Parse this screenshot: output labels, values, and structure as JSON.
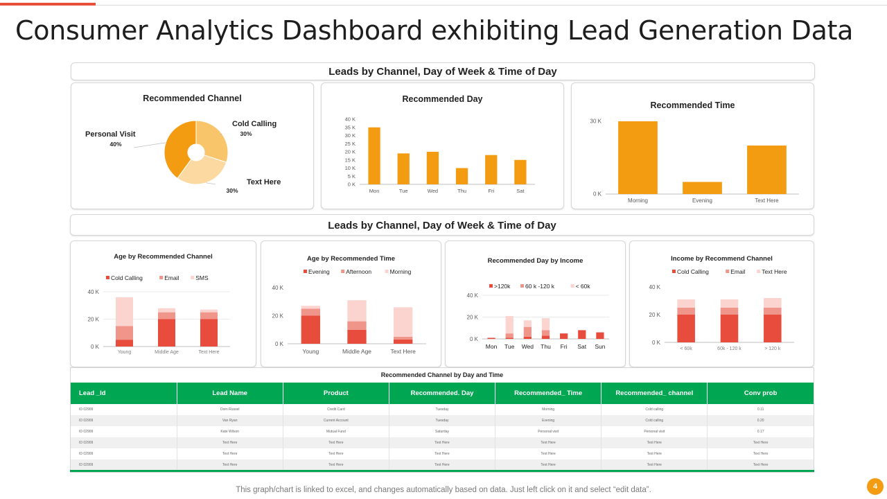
{
  "title": "Consumer Analytics Dashboard exhibiting Lead Generation Data",
  "section1_header": "Leads by Channel, Day of Week & Time of Day",
  "section2_header": "Leads by Channel, Day of Week & Time of Day",
  "colors": {
    "accent": "#e8503a",
    "orange": "#f39c12",
    "green": "#00a651",
    "red": "#e84c3d",
    "salmon": "#f0958a",
    "pink": "#fbd3cf"
  },
  "chart_data": [
    {
      "id": "recommended_channel",
      "type": "pie",
      "title": "Recommended  Channel",
      "slices": [
        {
          "label": "Cold Calling",
          "pct_label": "30%",
          "value": 30,
          "color": "#f9c56b"
        },
        {
          "label": "Text Here",
          "pct_label": "30%",
          "value": 30,
          "color": "#fbd9a0"
        },
        {
          "label": "Personal Visit",
          "pct_label": "40%",
          "value": 40,
          "color": "#f39c12"
        }
      ]
    },
    {
      "id": "recommended_day",
      "type": "bar",
      "title": "Recommended  Day",
      "categories": [
        "Mon",
        "Tue",
        "Wed",
        "Thu",
        "Fri",
        "Sat"
      ],
      "values": [
        35000,
        19000,
        20000,
        10000,
        18000,
        15000
      ],
      "yticks": [
        0,
        5000,
        10000,
        15000,
        20000,
        25000,
        30000,
        35000,
        40000
      ],
      "ytick_labels": [
        "0 K",
        "5 K",
        "10 K",
        "15 K",
        "20 K",
        "25 K",
        "30 K",
        "35 K",
        "40 K"
      ],
      "ylim": [
        0,
        40000
      ],
      "color": "#f39c12"
    },
    {
      "id": "recommended_time",
      "type": "bar",
      "title": "Recommended  Time",
      "categories": [
        "Morning",
        "Evening",
        "Text Here"
      ],
      "values": [
        30000,
        5000,
        20000
      ],
      "yticks": [
        0,
        30000
      ],
      "ytick_labels": [
        "0 K",
        "30 K"
      ],
      "ylim": [
        0,
        30000
      ],
      "color": "#f39c12"
    },
    {
      "id": "age_by_channel",
      "type": "bar",
      "stacked": true,
      "title": "Age by Recommended  Channel",
      "categories": [
        "Young",
        "Middle Age",
        "Text Here"
      ],
      "series": [
        {
          "name": "Cold Calling",
          "values": [
            5000,
            20000,
            20000
          ],
          "color": "#e84c3d"
        },
        {
          "name": "Email",
          "values": [
            10000,
            5000,
            5000
          ],
          "color": "#f0958a"
        },
        {
          "name": "SMS",
          "values": [
            21000,
            3000,
            2000
          ],
          "color": "#fbd3cf"
        }
      ],
      "yticks": [
        0,
        20000,
        40000
      ],
      "ytick_labels": [
        "0 K",
        "20 K",
        "40 K"
      ],
      "ylim": [
        0,
        40000
      ]
    },
    {
      "id": "age_by_time",
      "type": "bar",
      "stacked": true,
      "title": "Age by Recommended  Time",
      "categories": [
        "Young",
        "Middle Age",
        "Text Here"
      ],
      "series": [
        {
          "name": "Evening",
          "values": [
            20000,
            10000,
            3000
          ],
          "color": "#e84c3d"
        },
        {
          "name": "Afternoon",
          "values": [
            5000,
            6000,
            2000
          ],
          "color": "#f0958a"
        },
        {
          "name": "Morning",
          "values": [
            2000,
            15000,
            21000
          ],
          "color": "#fbd3cf"
        }
      ],
      "yticks": [
        0,
        20000,
        40000
      ],
      "ytick_labels": [
        "0 K",
        "20 K",
        "40 K"
      ],
      "ylim": [
        0,
        40000
      ]
    },
    {
      "id": "day_by_income",
      "type": "bar",
      "stacked": true,
      "title": "Recommended  Day by Income",
      "categories": [
        "Mon",
        "Tue",
        "Wed",
        "Thu",
        "Fri",
        "Sat",
        "Sun"
      ],
      "series": [
        {
          "name": ">120k",
          "values": [
            1000,
            1000,
            2000,
            3000,
            5000,
            8000,
            6000
          ],
          "color": "#e84c3d"
        },
        {
          "name": "60 k -120 k",
          "values": [
            0,
            4000,
            9000,
            5000,
            0,
            0,
            0
          ],
          "color": "#f0958a"
        },
        {
          "name": "< 60k",
          "values": [
            0,
            16000,
            6000,
            11000,
            0,
            0,
            0
          ],
          "color": "#fbd3cf"
        }
      ],
      "yticks": [
        0,
        20000,
        40000
      ],
      "ytick_labels": [
        "0 K",
        "20 K",
        "40 K"
      ],
      "ylim": [
        0,
        40000
      ]
    },
    {
      "id": "income_by_channel",
      "type": "bar",
      "stacked": true,
      "title": "Income by Recommend  Channel",
      "categories": [
        "< 60k",
        "60k - 120 k",
        "> 120 k"
      ],
      "series": [
        {
          "name": "Cold Calling",
          "values": [
            20000,
            20000,
            20000
          ],
          "color": "#e84c3d"
        },
        {
          "name": "Email",
          "values": [
            5000,
            5000,
            5000
          ],
          "color": "#f0958a"
        },
        {
          "name": "Text Here",
          "values": [
            6000,
            6000,
            7000
          ],
          "color": "#fbd3cf"
        }
      ],
      "yticks": [
        0,
        20000,
        40000
      ],
      "ytick_labels": [
        "0 K",
        "20 K",
        "40 K"
      ],
      "ylim": [
        0,
        40000
      ]
    }
  ],
  "table": {
    "title": "Recommended  Channel  by Day and Time",
    "headers": [
      "Lead _Id",
      "Lead Name",
      "Product",
      "Recommended.  Day",
      "Recommended_  Time",
      "Recommended_  channel",
      "Conv  prob"
    ],
    "rows": [
      [
        "ID 02909",
        "Dorn Russel",
        "Credit Card",
        "Tuesday",
        "Morning",
        "Cold calling",
        "0.11"
      ],
      [
        "ID 02909",
        "Van Ryan",
        "Current Account",
        "Tuesday",
        "Evening",
        "Cold calling",
        "0.20"
      ],
      [
        "ID 02909",
        "Kate Wilson",
        "Mutual  Fund",
        "Saturday",
        "Personal visit",
        "Personal visit",
        "0.17"
      ],
      [
        "ID 02909",
        "Text Here",
        "Text Here",
        "Text Here",
        "Text Here",
        "Text Here",
        "Text Here"
      ],
      [
        "ID 02909",
        "Text Here",
        "Text Here",
        "Text Here",
        "Text Here",
        "Text Here",
        "Text Here"
      ],
      [
        "ID 02909",
        "Text Here",
        "Text Here",
        "Text Here",
        "Text Here",
        "Text Here",
        "Text Here"
      ]
    ]
  },
  "footnote": "This graph/chart is linked to excel,  and changes automatically based on data. Just left click on it and select “edit data”.",
  "page_number": "4"
}
